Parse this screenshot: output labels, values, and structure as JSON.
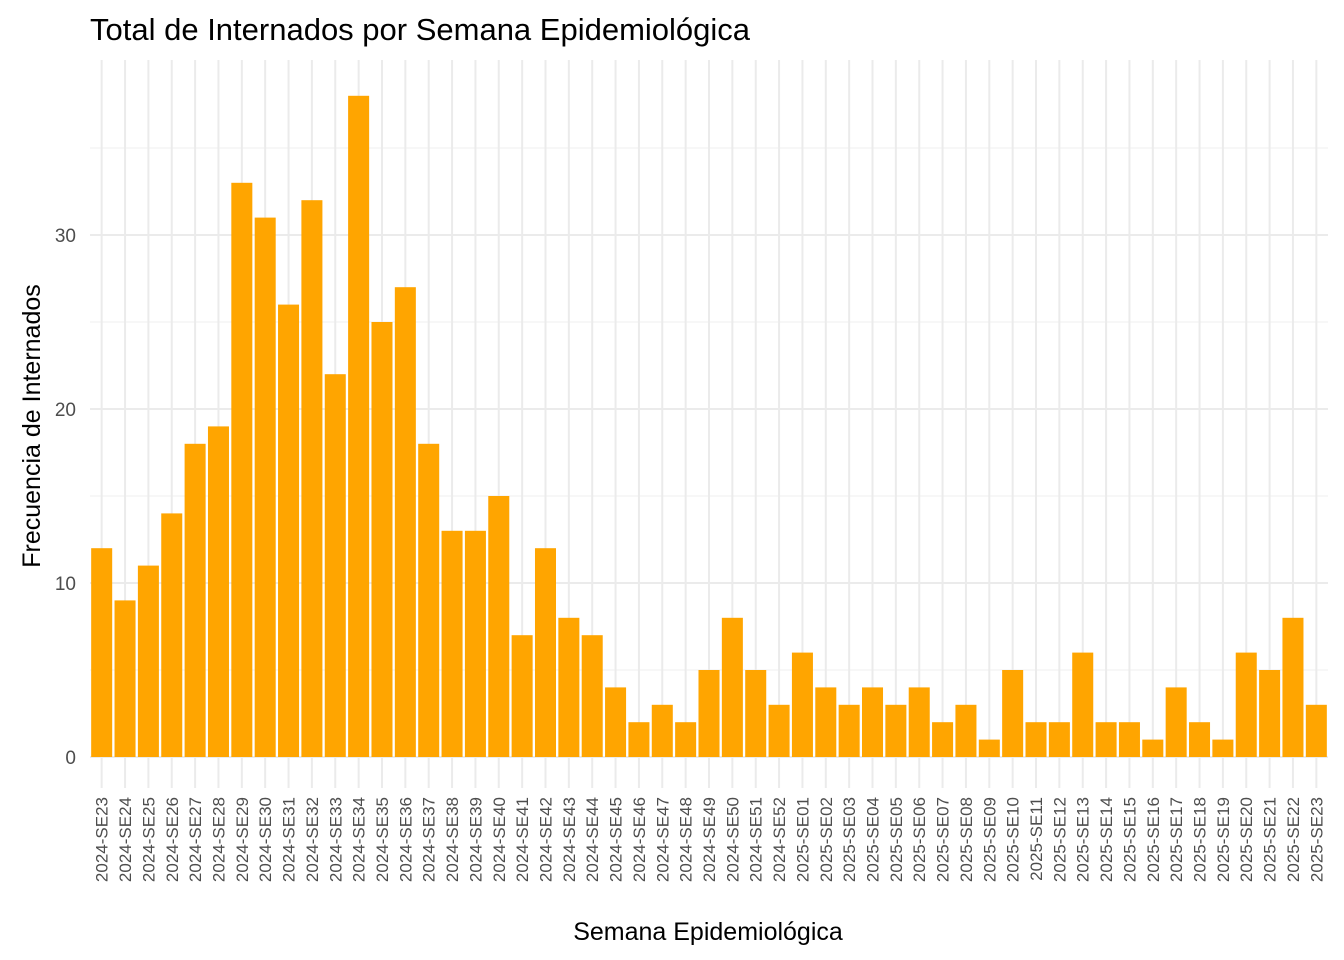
{
  "chart_data": {
    "type": "bar",
    "title": "Total de Internados por Semana Epidemiológica",
    "xlabel": "Semana Epidemiológica",
    "ylabel": "Frecuencia de Internados",
    "ylim": [
      0,
      40
    ],
    "yticks": [
      0,
      10,
      20,
      30
    ],
    "grid": true,
    "bar_color": "#FFA500",
    "categories": [
      "2024-SE23",
      "2024-SE24",
      "2024-SE25",
      "2024-SE26",
      "2024-SE27",
      "2024-SE28",
      "2024-SE29",
      "2024-SE30",
      "2024-SE31",
      "2024-SE32",
      "2024-SE33",
      "2024-SE34",
      "2024-SE35",
      "2024-SE36",
      "2024-SE37",
      "2024-SE38",
      "2024-SE39",
      "2024-SE40",
      "2024-SE41",
      "2024-SE42",
      "2024-SE43",
      "2024-SE44",
      "2024-SE45",
      "2024-SE46",
      "2024-SE47",
      "2024-SE48",
      "2024-SE49",
      "2024-SE50",
      "2024-SE51",
      "2024-SE52",
      "2025-SE01",
      "2025-SE02",
      "2025-SE03",
      "2025-SE04",
      "2025-SE05",
      "2025-SE06",
      "2025-SE07",
      "2025-SE08",
      "2025-SE09",
      "2025-SE10",
      "2025-SE11",
      "2025-SE12",
      "2025-SE13",
      "2025-SE14",
      "2025-SE15",
      "2025-SE16",
      "2025-SE17",
      "2025-SE18",
      "2025-SE19",
      "2025-SE20",
      "2025-SE21",
      "2025-SE22",
      "2025-SE23"
    ],
    "values": [
      12,
      9,
      11,
      14,
      18,
      19,
      33,
      31,
      26,
      32,
      22,
      38,
      25,
      27,
      18,
      13,
      13,
      15,
      7,
      12,
      8,
      7,
      4,
      2,
      3,
      2,
      5,
      8,
      5,
      3,
      6,
      4,
      3,
      4,
      3,
      4,
      2,
      3,
      1,
      5,
      2,
      2,
      6,
      2,
      2,
      1,
      4,
      2,
      1,
      6,
      5,
      8,
      3
    ]
  }
}
